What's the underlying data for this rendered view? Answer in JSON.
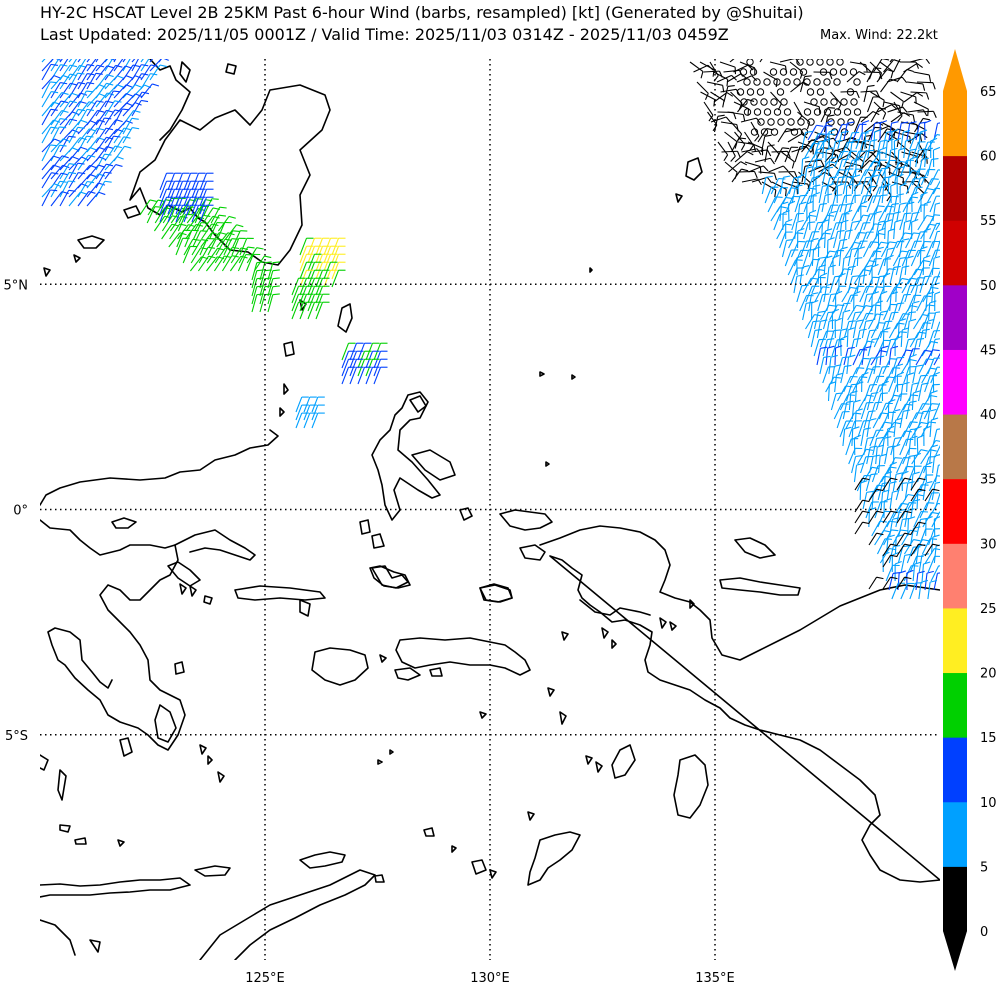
{
  "header": {
    "title_line1": "HY-2C HSCAT Level 2B 25KM Past 6-hour Wind (barbs, resampled) [kt] (Generated by @Shuitai)",
    "title_line2": "Last Updated: 2025/11/05 0001Z / Valid Time: 2025/11/03 0314Z - 2025/11/03 0459Z",
    "max_wind": "Max. Wind: 22.2kt"
  },
  "map": {
    "lon_range": [
      120,
      140
    ],
    "lat_range": [
      -10,
      10
    ],
    "lon_labels": [
      {
        "value": 125,
        "text": "125°E"
      },
      {
        "value": 130,
        "text": "130°E"
      },
      {
        "value": 135,
        "text": "135°E"
      }
    ],
    "lat_labels": [
      {
        "value": 5,
        "text": "5°N"
      },
      {
        "value": 0,
        "text": "0°"
      },
      {
        "value": -5,
        "text": "5°S"
      }
    ],
    "gridline_style": "dotted",
    "coastline_color": "#000000"
  },
  "colorbar": {
    "ticks": [
      "0",
      "5",
      "10",
      "15",
      "20",
      "25",
      "30",
      "35",
      "40",
      "45",
      "50",
      "55",
      "60",
      "65"
    ],
    "colors": [
      "#000000",
      "#00a0ff",
      "#0040ff",
      "#00d000",
      "#ffee22",
      "#ff8070",
      "#ff0000",
      "#b87848",
      "#ff00ff",
      "#a000c8",
      "#d00000",
      "#b00000",
      "#ff9900"
    ],
    "extend": "both"
  }
}
